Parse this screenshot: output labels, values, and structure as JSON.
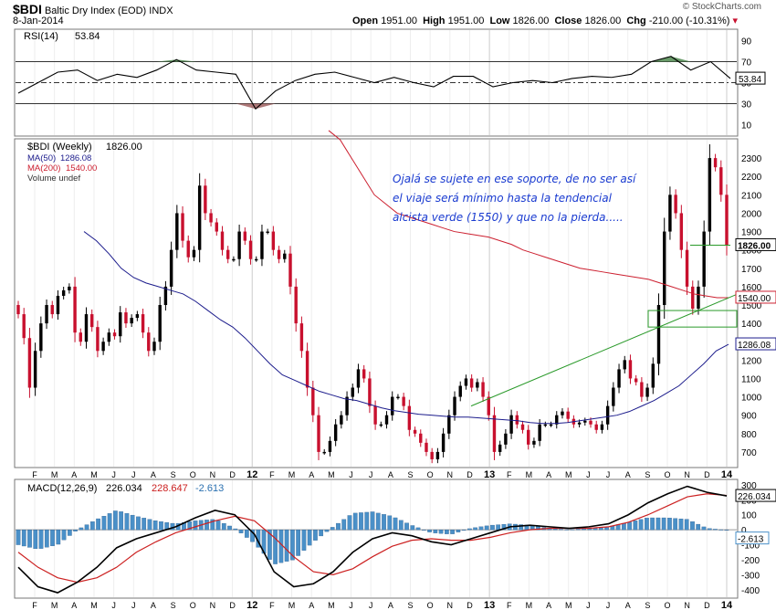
{
  "header": {
    "symbol": "$BDI",
    "name": "Baltic Dry Index (EOD)",
    "exchange": "INDX",
    "date": "8-Jan-2014",
    "source": "© StockCharts.com",
    "open_label": "Open",
    "open": "1951.00",
    "high_label": "High",
    "high": "1951.00",
    "low_label": "Low",
    "low": "1826.00",
    "close_label": "Close",
    "close": "1826.00",
    "chg_label": "Chg",
    "chg": "-210.00 (-10.31%)"
  },
  "annotation": {
    "lines": [
      "Ojalá se sujete en ese soporte, de no ser así",
      "el viaje será mínimo hasta la tendencial",
      "alcista verde (1550) y que no la pierda....."
    ]
  },
  "colors": {
    "up_candle": "#000000",
    "down_candle": "#c8102e",
    "ma50": "#1c1c8c",
    "ma200": "#cc1f2f",
    "trendline": "#2a9a2a",
    "rsi_overbought_fill": "#4f8a4f",
    "rsi_oversold_fill": "#a06060",
    "macd_histogram": "#4a90c8",
    "macd_line": "#000000",
    "signal_line": "#cc2020"
  },
  "chart_data": [
    {
      "type": "line",
      "title": "RSI(14)",
      "current_value": "53.84",
      "ylim": [
        0,
        100
      ],
      "ticks": [
        10,
        30,
        50,
        70,
        90
      ],
      "reference_lines": [
        30,
        50,
        70
      ],
      "value_tag": "53.84",
      "x": [
        "2011-01",
        "2011-02",
        "2011-03",
        "2011-04",
        "2011-05",
        "2011-06",
        "2011-07",
        "2011-08",
        "2011-09",
        "2011-10",
        "2011-11",
        "2011-12",
        "2012-01",
        "2012-02",
        "2012-03",
        "2012-04",
        "2012-05",
        "2012-06",
        "2012-07",
        "2012-08",
        "2012-09",
        "2012-10",
        "2012-11",
        "2012-12",
        "2013-01",
        "2013-02",
        "2013-03",
        "2013-04",
        "2013-05",
        "2013-06",
        "2013-07",
        "2013-08",
        "2013-09",
        "2013-10",
        "2013-11",
        "2013-12",
        "2014-01"
      ],
      "values": [
        40,
        50,
        60,
        62,
        52,
        58,
        55,
        62,
        72,
        62,
        60,
        58,
        25,
        42,
        52,
        58,
        60,
        55,
        50,
        55,
        50,
        46,
        56,
        56,
        46,
        50,
        52,
        50,
        54,
        56,
        55,
        58,
        70,
        75,
        62,
        70,
        54
      ]
    },
    {
      "type": "candlestick",
      "title": "$BDI (Weekly)",
      "last": "1826.00",
      "series": [
        {
          "name": "MA(50)",
          "value": "1286.08"
        },
        {
          "name": "MA(200)",
          "value": "1540.00"
        },
        {
          "name": "Volume undef",
          "value": ""
        }
      ],
      "ylim": [
        620,
        2400
      ],
      "yticks": [
        700,
        800,
        900,
        1000,
        1100,
        1200,
        1300,
        1400,
        1500,
        1600,
        1700,
        1800,
        1900,
        2000,
        2100,
        2200,
        2300
      ],
      "price_tags": [
        "1826.00",
        "1540.00",
        "1286.08"
      ],
      "x_axis_labels": [
        "F",
        "M",
        "A",
        "M",
        "J",
        "J",
        "A",
        "S",
        "O",
        "N",
        "D",
        "12",
        "F",
        "M",
        "A",
        "M",
        "J",
        "J",
        "A",
        "S",
        "O",
        "N",
        "D",
        "13",
        "F",
        "M",
        "A",
        "M",
        "J",
        "J",
        "A",
        "S",
        "O",
        "N",
        "D",
        "14"
      ],
      "closes": [
        1450,
        1320,
        1050,
        1250,
        1400,
        1500,
        1450,
        1550,
        1580,
        1600,
        1350,
        1300,
        1450,
        1380,
        1250,
        1300,
        1350,
        1330,
        1460,
        1400,
        1430,
        1450,
        1350,
        1250,
        1300,
        1500,
        1600,
        1800,
        2000,
        1850,
        1760,
        1800,
        2150,
        2000,
        1950,
        1900,
        1800,
        1750,
        1750,
        1900,
        1850,
        1750,
        1750,
        1900,
        1900,
        1800,
        1750,
        1780,
        1600,
        1400,
        1250,
        1050,
        900,
        700,
        700,
        760,
        850,
        900,
        1000,
        1050,
        1150,
        1100,
        950,
        850,
        850,
        900,
        1000,
        1000,
        950,
        820,
        800,
        750,
        700,
        660,
        700,
        800,
        900,
        1000,
        1060,
        1100,
        1050,
        1080,
        1000,
        900,
        700,
        740,
        800,
        900,
        850,
        820,
        740,
        760,
        850,
        850,
        850,
        900,
        920,
        880,
        850,
        860,
        870,
        850,
        820,
        850,
        950,
        1050,
        1150,
        1200,
        1100,
        1080,
        1000,
        1050,
        1180,
        1500,
        1900,
        2100,
        2000,
        1800,
        1600,
        1480,
        1600,
        1900,
        2300,
        2250,
        2100,
        1826
      ],
      "ma50": [
        1900,
        1850,
        1780,
        1700,
        1650,
        1620,
        1600,
        1580,
        1560,
        1520,
        1470,
        1420,
        1380,
        1320,
        1250,
        1180,
        1120,
        1090,
        1060,
        1030,
        1010,
        990,
        980,
        960,
        940,
        925,
        915,
        905,
        900,
        895,
        890,
        890,
        885,
        880,
        875,
        870,
        860,
        855,
        855,
        860,
        870,
        880,
        890,
        900,
        920,
        950,
        980,
        1020,
        1060,
        1120,
        1180,
        1250,
        1286
      ],
      "ma200": [
        2450,
        2400,
        2300,
        2200,
        2100,
        2050,
        2000,
        1980,
        1960,
        1940,
        1920,
        1900,
        1890,
        1880,
        1870,
        1850,
        1830,
        1800,
        1780,
        1760,
        1740,
        1720,
        1700,
        1690,
        1680,
        1670,
        1660,
        1650,
        1640,
        1620,
        1600,
        1580,
        1560,
        1550,
        1540,
        1540
      ],
      "trendline": {
        "from": [
          "2012-12",
          950
        ],
        "to": [
          "2014-01",
          1560
        ]
      },
      "support_box": [
        1380,
        1470
      ]
    },
    {
      "type": "bar",
      "title": "MACD(12,26,9)",
      "macd": "226.034",
      "signal": "228.647",
      "histogram_value": "-2.613",
      "ylim": [
        -450,
        330
      ],
      "yticks": [
        -400,
        -300,
        -200,
        -100,
        0,
        100,
        200,
        300
      ],
      "value_tags": [
        "226.034",
        "-2.613"
      ],
      "x_axis_labels": [
        "F",
        "M",
        "A",
        "M",
        "J",
        "J",
        "A",
        "S",
        "O",
        "N",
        "D",
        "12",
        "F",
        "M",
        "A",
        "M",
        "J",
        "J",
        "A",
        "S",
        "O",
        "N",
        "D",
        "13",
        "F",
        "M",
        "A",
        "M",
        "J",
        "J",
        "A",
        "S",
        "O",
        "N",
        "D",
        "14"
      ],
      "macd_values": [
        -250,
        -380,
        -420,
        -350,
        -250,
        -120,
        -60,
        -20,
        20,
        80,
        130,
        100,
        -30,
        -280,
        -380,
        -360,
        -280,
        -150,
        -60,
        -20,
        -40,
        -80,
        -100,
        -60,
        -20,
        20,
        30,
        20,
        10,
        20,
        40,
        100,
        180,
        240,
        290,
        250,
        226
      ],
      "signal_values": [
        -150,
        -250,
        -320,
        -350,
        -320,
        -250,
        -150,
        -80,
        -20,
        20,
        60,
        90,
        60,
        -50,
        -180,
        -280,
        -300,
        -260,
        -180,
        -110,
        -70,
        -60,
        -70,
        -70,
        -50,
        -20,
        0,
        10,
        10,
        10,
        20,
        50,
        100,
        160,
        220,
        240,
        229
      ],
      "histogram": [
        -100,
        -130,
        -100,
        0,
        70,
        130,
        90,
        60,
        40,
        60,
        70,
        10,
        -90,
        -230,
        -200,
        -80,
        20,
        110,
        120,
        90,
        30,
        -20,
        -30,
        10,
        30,
        40,
        30,
        10,
        0,
        10,
        20,
        50,
        80,
        80,
        70,
        10,
        -3
      ]
    }
  ]
}
